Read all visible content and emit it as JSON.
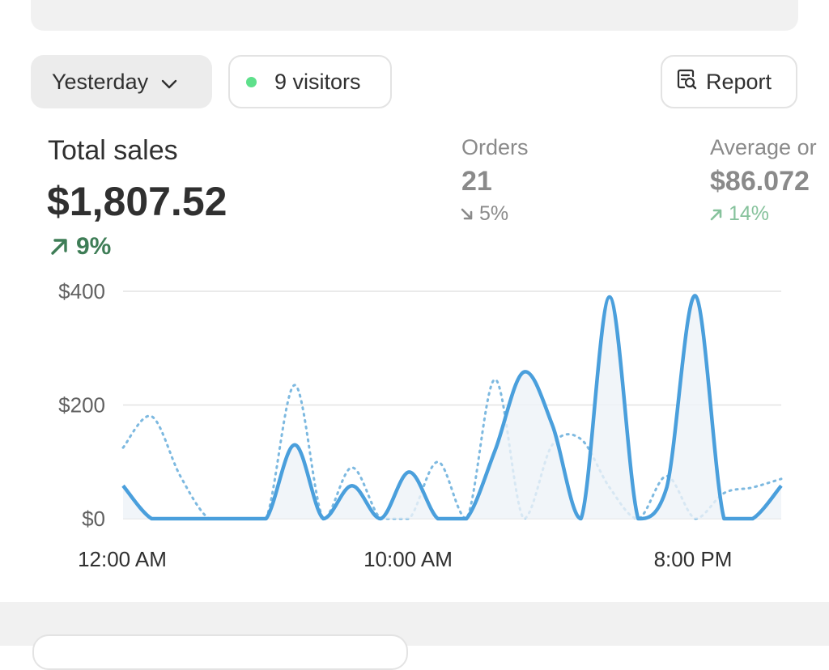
{
  "toolbar": {
    "date_label": "Yesterday",
    "visitors_label": "9 visitors",
    "report_label": "Report",
    "icons": {
      "date": "chevron-down-icon",
      "visitors": "live-dot-icon",
      "report": "report-search-icon"
    },
    "colors": {
      "live_dot": "#5ee08b"
    }
  },
  "metrics": {
    "total_sales": {
      "label": "Total sales",
      "value": "$1,807.52",
      "change": "9%",
      "direction": "up"
    },
    "orders": {
      "label": "Orders",
      "value": "21",
      "change": "5%",
      "direction": "down"
    },
    "average_order": {
      "label": "Average or",
      "value": "$86.072",
      "change": "14%",
      "direction": "up"
    }
  },
  "chart_data": {
    "type": "line",
    "ylabels": [
      "$400",
      "$200",
      "$0"
    ],
    "xlabels": [
      "12:00 AM",
      "10:00 AM",
      "8:00 PM"
    ],
    "ylim": [
      0,
      400
    ],
    "grid": true,
    "x": [
      0,
      1,
      2,
      3,
      4,
      5,
      6,
      7,
      8,
      9,
      10,
      11,
      12,
      13,
      14,
      15,
      16,
      17,
      18,
      19,
      20,
      21,
      22,
      23
    ],
    "series": [
      {
        "style": "solid",
        "color": "#4a9fdc",
        "values": [
          58,
          0,
          0,
          0,
          0,
          0,
          130,
          0,
          58,
          0,
          82,
          0,
          0,
          120,
          258,
          165,
          0,
          390,
          0,
          55,
          392,
          0,
          0,
          58
        ]
      },
      {
        "style": "dotted",
        "color": "#7db9e0",
        "values": [
          125,
          180,
          75,
          0,
          0,
          0,
          235,
          0,
          90,
          0,
          0,
          100,
          0,
          245,
          0,
          130,
          140,
          55,
          0,
          75,
          0,
          45,
          55,
          70
        ]
      }
    ]
  }
}
